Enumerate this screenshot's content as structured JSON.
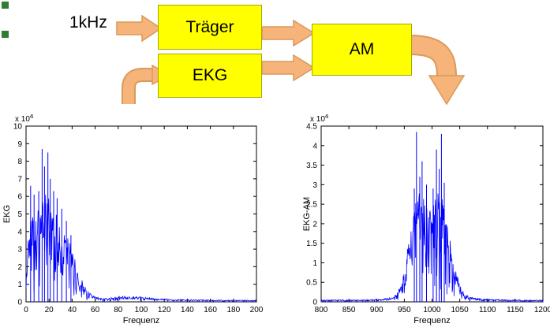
{
  "diagram": {
    "input_label": "1kHz",
    "blocks": {
      "traeger": "Träger",
      "ekg": "EKG",
      "am": "AM"
    },
    "colors": {
      "block_fill": "#ffff00",
      "block_border": "#a6a600",
      "arrow_fill": "#f6b47b",
      "arrow_border": "#d99a57",
      "marker_green": "#2e7d32",
      "series_blue": "#0000ff"
    }
  },
  "chart_data": [
    {
      "type": "line",
      "title": "",
      "xlabel": "Frequenz",
      "ylabel": "EKG",
      "power_label": "x 10^4",
      "xlim": [
        0,
        200
      ],
      "ylim": [
        0,
        10
      ],
      "xticks": [
        0,
        20,
        40,
        60,
        80,
        100,
        120,
        140,
        160,
        180,
        200
      ],
      "yticks": [
        0,
        1,
        2,
        3,
        4,
        5,
        6,
        7,
        8,
        9,
        10
      ],
      "grid": false,
      "legend": "none",
      "color": "#0000ff",
      "seed": 42,
      "samples": 520,
      "envelope": [
        [
          0,
          1.2
        ],
        [
          1,
          3
        ],
        [
          3,
          5
        ],
        [
          5,
          5.8
        ],
        [
          8,
          5.2
        ],
        [
          10,
          5.6
        ],
        [
          13,
          5.2
        ],
        [
          15,
          6
        ],
        [
          18,
          6.2
        ],
        [
          20,
          6
        ],
        [
          23,
          5.4
        ],
        [
          26,
          5
        ],
        [
          30,
          4.6
        ],
        [
          34,
          4
        ],
        [
          38,
          3.4
        ],
        [
          42,
          2.6
        ],
        [
          46,
          1.8
        ],
        [
          50,
          1
        ],
        [
          54,
          0.6
        ],
        [
          58,
          0.35
        ],
        [
          64,
          0.22
        ],
        [
          72,
          0.22
        ],
        [
          80,
          0.3
        ],
        [
          88,
          0.32
        ],
        [
          95,
          0.3
        ],
        [
          105,
          0.25
        ],
        [
          115,
          0.18
        ],
        [
          130,
          0.14
        ],
        [
          150,
          0.12
        ],
        [
          175,
          0.1
        ],
        [
          200,
          0.1
        ]
      ],
      "spikes": [
        [
          4,
          6.6
        ],
        [
          7,
          6.1
        ],
        [
          11,
          6.3
        ],
        [
          14,
          8.7
        ],
        [
          16,
          7.7
        ],
        [
          19,
          8.5
        ],
        [
          21,
          7
        ],
        [
          24,
          6.3
        ],
        [
          27,
          5.9
        ],
        [
          31,
          5.3
        ],
        [
          35,
          4.6
        ],
        [
          39,
          3.8
        ]
      ]
    },
    {
      "type": "line",
      "title": "",
      "xlabel": "Frequenz",
      "ylabel": "EKG-AM",
      "power_label": "x 10^4",
      "xlim": [
        800,
        1200
      ],
      "ylim": [
        0,
        4.5
      ],
      "xticks": [
        800,
        850,
        900,
        950,
        1000,
        1050,
        1100,
        1150,
        1200
      ],
      "yticks": [
        0,
        0.5,
        1,
        1.5,
        2,
        2.5,
        3,
        3.5,
        4,
        4.5
      ],
      "grid": false,
      "legend": "none",
      "color": "#0000ff",
      "seed": 7,
      "samples": 620,
      "envelope": [
        [
          800,
          0.05
        ],
        [
          880,
          0.05
        ],
        [
          905,
          0.07
        ],
        [
          920,
          0.09
        ],
        [
          932,
          0.14
        ],
        [
          940,
          0.3
        ],
        [
          948,
          0.7
        ],
        [
          954,
          1.2
        ],
        [
          960,
          1.8
        ],
        [
          965,
          2.2
        ],
        [
          970,
          2.6
        ],
        [
          975,
          2.8
        ],
        [
          982,
          2.8
        ],
        [
          988,
          2.6
        ],
        [
          994,
          2.4
        ],
        [
          1000,
          2.5
        ],
        [
          1006,
          2.7
        ],
        [
          1012,
          2.8
        ],
        [
          1018,
          2.7
        ],
        [
          1024,
          2.3
        ],
        [
          1030,
          1.8
        ],
        [
          1036,
          1.3
        ],
        [
          1042,
          0.9
        ],
        [
          1050,
          0.45
        ],
        [
          1058,
          0.22
        ],
        [
          1068,
          0.12
        ],
        [
          1080,
          0.09
        ],
        [
          1100,
          0.07
        ],
        [
          1140,
          0.05
        ],
        [
          1200,
          0.05
        ]
      ],
      "spikes": [
        [
          972,
          4.35
        ],
        [
          1017,
          4.3
        ],
        [
          1008,
          3.9
        ],
        [
          982,
          3.6
        ],
        [
          1013,
          3.4
        ],
        [
          978,
          3.2
        ],
        [
          990,
          3.0
        ],
        [
          1002,
          2.9
        ],
        [
          1022,
          3.05
        ],
        [
          968,
          2.9
        ]
      ]
    }
  ]
}
